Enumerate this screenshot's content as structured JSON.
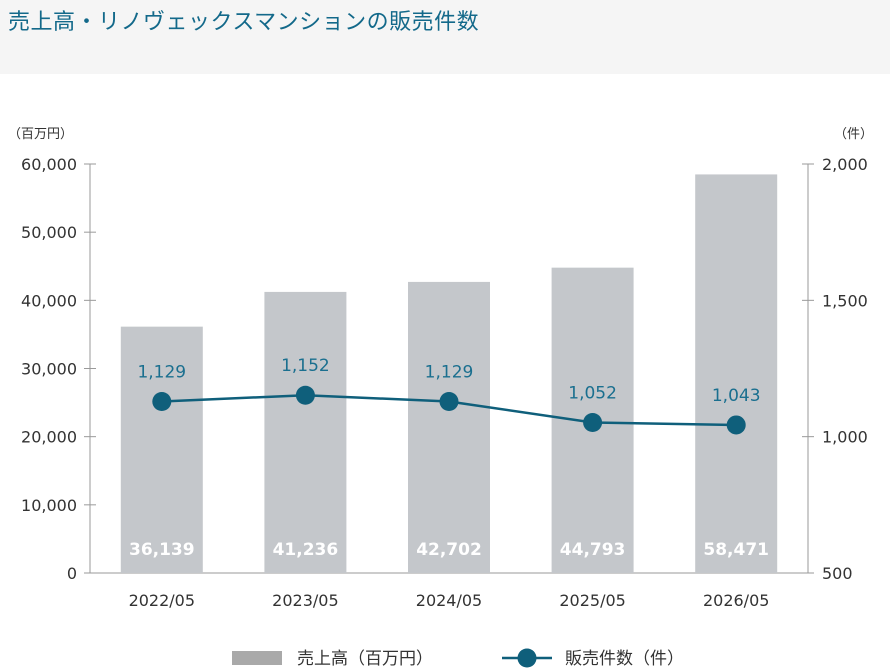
{
  "title": "売上高・リノヴェックスマンションの販売件数",
  "chart_data": {
    "type": "bar+line",
    "categories": [
      "2022/05",
      "2023/05",
      "2024/05",
      "2025/05",
      "2026/05"
    ],
    "series": [
      {
        "name": "売上高（百万円）",
        "type": "bar",
        "axis": "left",
        "values": [
          36139,
          41236,
          42702,
          44793,
          58471
        ],
        "labels": [
          "36,139",
          "41,236",
          "42,702",
          "44,793",
          "58,471"
        ]
      },
      {
        "name": "販売件数（件）",
        "type": "line",
        "axis": "right",
        "values": [
          1129,
          1152,
          1129,
          1052,
          1043
        ],
        "labels": [
          "1,129",
          "1,152",
          "1,129",
          "1,052",
          "1,043"
        ]
      }
    ],
    "left_axis": {
      "unit": "（百万円）",
      "ylim": [
        0,
        60000
      ],
      "ticks": [
        "0",
        "10,000",
        "20,000",
        "30,000",
        "40,000",
        "50,000",
        "60,000"
      ]
    },
    "right_axis": {
      "unit": "（件）",
      "ylim": [
        500,
        2000
      ],
      "ticks": [
        "500",
        "1,000",
        "1,500",
        "2,000"
      ]
    },
    "legend_placement": "bottom-center",
    "colors": {
      "bar": "#c4c7cb",
      "line": "#0f5f7b",
      "bar_label": "#ffffff",
      "line_label": "#1a6f8f",
      "axis": "#9a9a9a",
      "legend_bar": "#a9a9a9"
    }
  }
}
